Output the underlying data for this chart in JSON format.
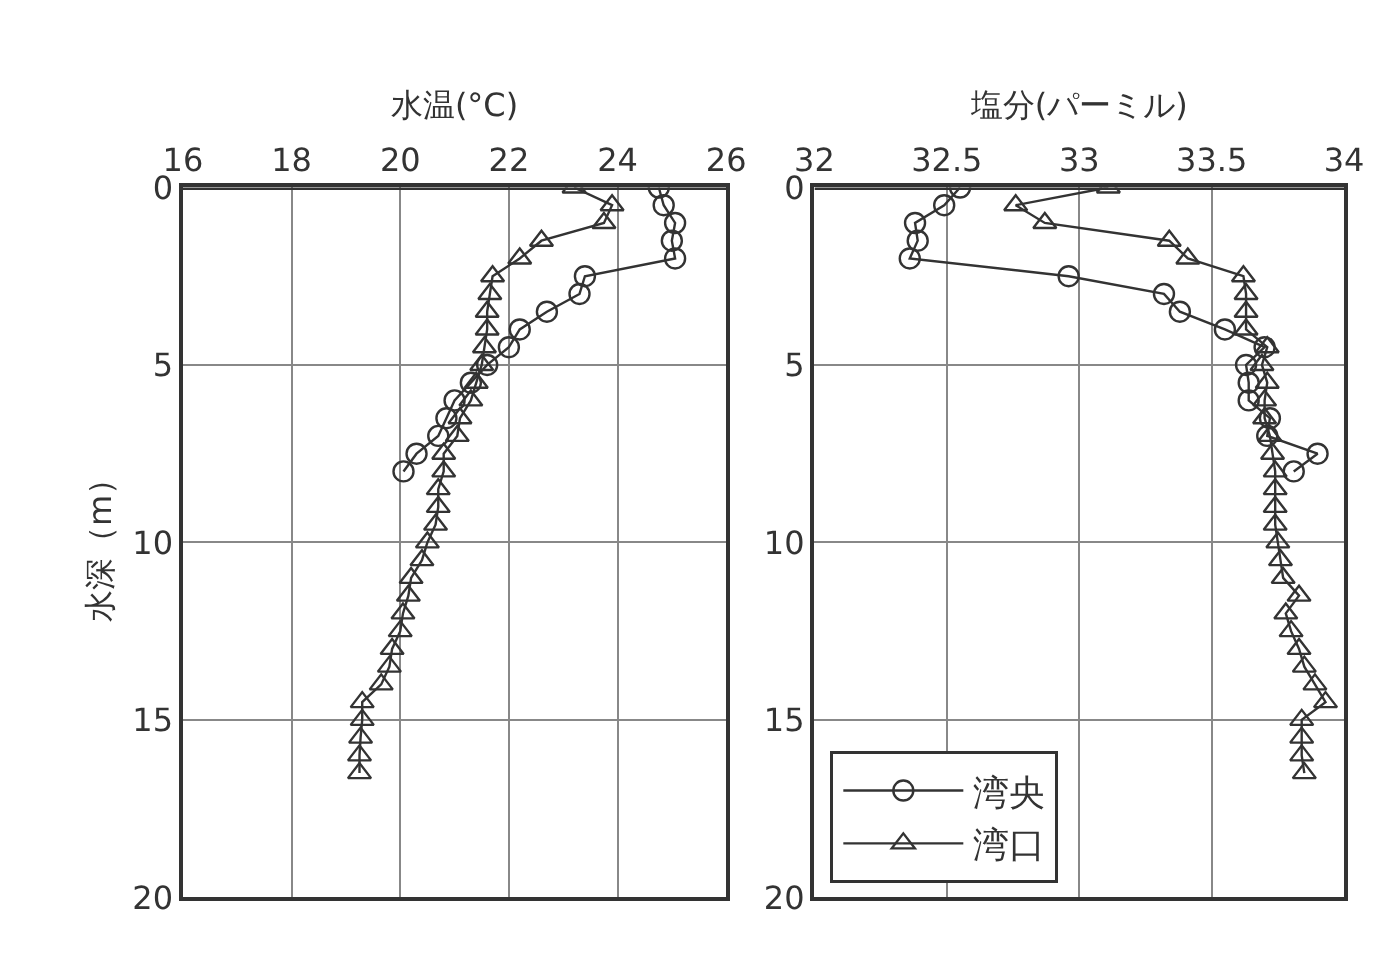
{
  "chart_data": [
    {
      "type": "line",
      "title": "水温(°C)",
      "ylabel": "水深（m）",
      "xlim": [
        16,
        26
      ],
      "xticks": [
        16,
        18,
        20,
        22,
        24,
        26
      ],
      "ylim": [
        20,
        0
      ],
      "yticks": [
        0,
        5,
        10,
        15,
        20
      ],
      "grid": true,
      "legend": false,
      "line_style": "solid",
      "series": [
        {
          "color": "#333333",
          "marker": "circle",
          "x": [
            24.76,
            24.85,
            25.06,
            25.0,
            25.06,
            23.4,
            23.3,
            22.7,
            22.2,
            22.0,
            21.6,
            21.3,
            21.0,
            20.85,
            20.7,
            20.3,
            20.06
          ],
          "values": [
            0,
            0.5,
            1.0,
            1.5,
            2.0,
            2.5,
            3.0,
            3.5,
            4.0,
            4.5,
            5.0,
            5.5,
            6.0,
            6.5,
            7.0,
            7.5,
            8.0
          ]
        },
        {
          "color": "#333333",
          "marker": "triangle",
          "x": [
            23.2,
            23.9,
            23.75,
            22.6,
            22.2,
            21.7,
            21.65,
            21.6,
            21.6,
            21.55,
            21.5,
            21.4,
            21.3,
            21.1,
            21.05,
            20.8,
            20.8,
            20.7,
            20.7,
            20.65,
            20.5,
            20.4,
            20.2,
            20.15,
            20.05,
            20.0,
            19.85,
            19.8,
            19.65,
            19.3,
            19.3,
            19.27,
            19.25,
            19.25
          ],
          "values": [
            0,
            0.5,
            1.0,
            1.5,
            2.0,
            2.5,
            3.0,
            3.5,
            4.0,
            4.5,
            5.0,
            5.5,
            6.0,
            6.5,
            7.0,
            7.5,
            8.0,
            8.5,
            9.0,
            9.5,
            10.0,
            10.5,
            11.0,
            11.5,
            12.0,
            12.5,
            13.0,
            13.5,
            14.0,
            14.5,
            15.0,
            15.5,
            16.0,
            16.5
          ]
        }
      ]
    },
    {
      "type": "line",
      "title": "塩分(パーミル)",
      "xlim": [
        32,
        34
      ],
      "xticks": [
        32,
        32.5,
        33,
        33.5,
        34
      ],
      "ylim": [
        20,
        0
      ],
      "yticks": [
        0,
        5,
        10,
        15,
        20
      ],
      "grid": true,
      "legend": "bottom left",
      "line_style": "solid",
      "series": [
        {
          "name": "湾央",
          "color": "#333333",
          "marker": "circle",
          "x": [
            32.55,
            32.49,
            32.38,
            32.39,
            32.36,
            32.96,
            33.32,
            33.38,
            33.55,
            33.7,
            33.63,
            33.64,
            33.64,
            33.72,
            33.71,
            33.9,
            33.81
          ],
          "values": [
            0,
            0.5,
            1.0,
            1.5,
            2.0,
            2.5,
            3.0,
            3.5,
            4.0,
            4.5,
            5.0,
            5.5,
            6.0,
            6.5,
            7.0,
            7.5,
            8.0
          ]
        },
        {
          "name": "湾口",
          "color": "#333333",
          "marker": "triangle",
          "x": [
            33.11,
            32.76,
            32.87,
            33.34,
            33.41,
            33.62,
            33.63,
            33.63,
            33.63,
            33.71,
            33.69,
            33.71,
            33.7,
            33.7,
            33.72,
            33.73,
            33.74,
            33.74,
            33.74,
            33.74,
            33.75,
            33.76,
            33.77,
            33.83,
            33.78,
            33.8,
            33.83,
            33.85,
            33.89,
            33.93,
            33.84,
            33.84,
            33.84,
            33.85
          ],
          "values": [
            0,
            0.5,
            1.0,
            1.5,
            2.0,
            2.5,
            3.0,
            3.5,
            4.0,
            4.5,
            5.0,
            5.5,
            6.0,
            6.5,
            7.0,
            7.5,
            8.0,
            8.5,
            9.0,
            9.5,
            10.0,
            10.5,
            11.0,
            11.5,
            12.0,
            12.5,
            13.0,
            13.5,
            14.0,
            14.5,
            15.0,
            15.5,
            16.0,
            16.5
          ]
        }
      ]
    }
  ]
}
